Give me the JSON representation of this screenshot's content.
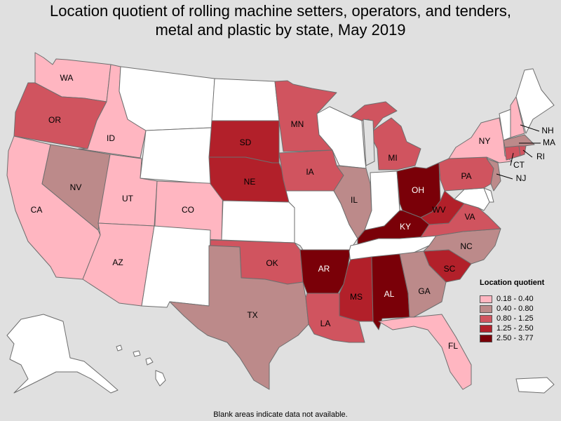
{
  "title_line1": "Location quotient of rolling machine setters, operators, and tenders,",
  "title_line2": "metal and plastic by state, May 2019",
  "legend": {
    "title": "Location quotient",
    "ranges": [
      {
        "label": "0.18 - 0.40",
        "color": "#ffb6c1"
      },
      {
        "label": "0.40 - 0.80",
        "color": "#bc8a8a"
      },
      {
        "label": "0.80 - 1.25",
        "color": "#d0545f"
      },
      {
        "label": "1.25 - 2.50",
        "color": "#b2202a"
      },
      {
        "label": "2.50 - 3.77",
        "color": "#7a0008"
      }
    ]
  },
  "no_data_color": "#ffffff",
  "footnote": "Blank areas indicate data not available.",
  "states": {
    "WA": {
      "class": 0
    },
    "OR": {
      "class": 2
    },
    "CA": {
      "class": 0
    },
    "ID": {
      "class": 0
    },
    "NV": {
      "class": 1
    },
    "UT": {
      "class": 0
    },
    "AZ": {
      "class": 0
    },
    "MT": {
      "class": null
    },
    "WY": {
      "class": null
    },
    "CO": {
      "class": 0
    },
    "NM": {
      "class": null
    },
    "ND": {
      "class": null
    },
    "SD": {
      "class": 3
    },
    "NE": {
      "class": 3
    },
    "KS": {
      "class": null
    },
    "OK": {
      "class": 2
    },
    "TX": {
      "class": 1
    },
    "MN": {
      "class": 2
    },
    "IA": {
      "class": 2
    },
    "MO": {
      "class": null
    },
    "AR": {
      "class": 4
    },
    "LA": {
      "class": 2
    },
    "WI": {
      "class": null
    },
    "IL": {
      "class": 1
    },
    "MI": {
      "class": 2
    },
    "IN": {
      "class": null
    },
    "OH": {
      "class": 4
    },
    "KY": {
      "class": 4
    },
    "TN": {
      "class": null
    },
    "MS": {
      "class": 3
    },
    "AL": {
      "class": 4
    },
    "GA": {
      "class": 1
    },
    "FL": {
      "class": 0
    },
    "SC": {
      "class": 3
    },
    "NC": {
      "class": 1
    },
    "VA": {
      "class": 2
    },
    "WV": {
      "class": 3
    },
    "PA": {
      "class": 2
    },
    "NY": {
      "class": 0
    },
    "VT": {
      "class": null
    },
    "NH": {
      "class": 0
    },
    "ME": {
      "class": null
    },
    "MA": {
      "class": 1
    },
    "CT": {
      "class": 2
    },
    "RI": {
      "class": 2
    },
    "NJ": {
      "class": 1
    },
    "DE": {
      "class": null
    },
    "MD": {
      "class": null
    },
    "AK": {
      "class": null
    },
    "HI": {
      "class": null
    },
    "PR": {
      "class": null
    }
  }
}
